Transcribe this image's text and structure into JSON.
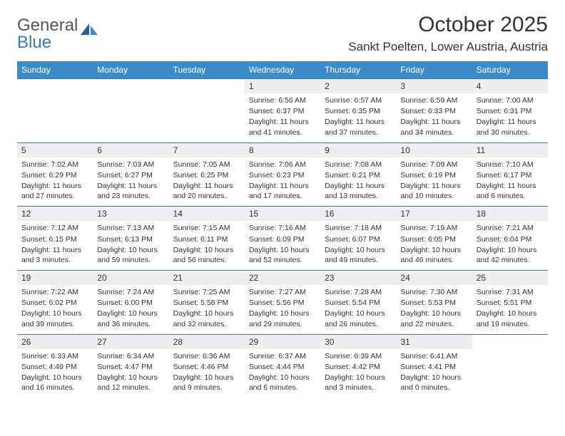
{
  "logo": {
    "word1": "General",
    "word2": "Blue"
  },
  "title": "October 2025",
  "location": "Sankt Poelten, Lower Austria, Austria",
  "colors": {
    "header_bg": "#3b8bc8",
    "border": "#2f7abf",
    "daynum_bg": "#eeeeee",
    "bg": "#ffffff",
    "text": "#333333"
  },
  "weekdays": [
    "Sunday",
    "Monday",
    "Tuesday",
    "Wednesday",
    "Thursday",
    "Friday",
    "Saturday"
  ],
  "weeks": [
    [
      null,
      null,
      null,
      {
        "n": "1",
        "sr": "6:56 AM",
        "ss": "6:37 PM",
        "dl": "11 hours and 41 minutes."
      },
      {
        "n": "2",
        "sr": "6:57 AM",
        "ss": "6:35 PM",
        "dl": "11 hours and 37 minutes."
      },
      {
        "n": "3",
        "sr": "6:59 AM",
        "ss": "6:33 PM",
        "dl": "11 hours and 34 minutes."
      },
      {
        "n": "4",
        "sr": "7:00 AM",
        "ss": "6:31 PM",
        "dl": "11 hours and 30 minutes."
      }
    ],
    [
      {
        "n": "5",
        "sr": "7:02 AM",
        "ss": "6:29 PM",
        "dl": "11 hours and 27 minutes."
      },
      {
        "n": "6",
        "sr": "7:03 AM",
        "ss": "6:27 PM",
        "dl": "11 hours and 23 minutes."
      },
      {
        "n": "7",
        "sr": "7:05 AM",
        "ss": "6:25 PM",
        "dl": "11 hours and 20 minutes."
      },
      {
        "n": "8",
        "sr": "7:06 AM",
        "ss": "6:23 PM",
        "dl": "11 hours and 17 minutes."
      },
      {
        "n": "9",
        "sr": "7:08 AM",
        "ss": "6:21 PM",
        "dl": "11 hours and 13 minutes."
      },
      {
        "n": "10",
        "sr": "7:09 AM",
        "ss": "6:19 PM",
        "dl": "11 hours and 10 minutes."
      },
      {
        "n": "11",
        "sr": "7:10 AM",
        "ss": "6:17 PM",
        "dl": "11 hours and 6 minutes."
      }
    ],
    [
      {
        "n": "12",
        "sr": "7:12 AM",
        "ss": "6:15 PM",
        "dl": "11 hours and 3 minutes."
      },
      {
        "n": "13",
        "sr": "7:13 AM",
        "ss": "6:13 PM",
        "dl": "10 hours and 59 minutes."
      },
      {
        "n": "14",
        "sr": "7:15 AM",
        "ss": "6:11 PM",
        "dl": "10 hours and 56 minutes."
      },
      {
        "n": "15",
        "sr": "7:16 AM",
        "ss": "6:09 PM",
        "dl": "10 hours and 52 minutes."
      },
      {
        "n": "16",
        "sr": "7:18 AM",
        "ss": "6:07 PM",
        "dl": "10 hours and 49 minutes."
      },
      {
        "n": "17",
        "sr": "7:19 AM",
        "ss": "6:05 PM",
        "dl": "10 hours and 46 minutes."
      },
      {
        "n": "18",
        "sr": "7:21 AM",
        "ss": "6:04 PM",
        "dl": "10 hours and 42 minutes."
      }
    ],
    [
      {
        "n": "19",
        "sr": "7:22 AM",
        "ss": "6:02 PM",
        "dl": "10 hours and 39 minutes."
      },
      {
        "n": "20",
        "sr": "7:24 AM",
        "ss": "6:00 PM",
        "dl": "10 hours and 36 minutes."
      },
      {
        "n": "21",
        "sr": "7:25 AM",
        "ss": "5:58 PM",
        "dl": "10 hours and 32 minutes."
      },
      {
        "n": "22",
        "sr": "7:27 AM",
        "ss": "5:56 PM",
        "dl": "10 hours and 29 minutes."
      },
      {
        "n": "23",
        "sr": "7:28 AM",
        "ss": "5:54 PM",
        "dl": "10 hours and 26 minutes."
      },
      {
        "n": "24",
        "sr": "7:30 AM",
        "ss": "5:53 PM",
        "dl": "10 hours and 22 minutes."
      },
      {
        "n": "25",
        "sr": "7:31 AM",
        "ss": "5:51 PM",
        "dl": "10 hours and 19 minutes."
      }
    ],
    [
      {
        "n": "26",
        "sr": "6:33 AM",
        "ss": "4:49 PM",
        "dl": "10 hours and 16 minutes."
      },
      {
        "n": "27",
        "sr": "6:34 AM",
        "ss": "4:47 PM",
        "dl": "10 hours and 12 minutes."
      },
      {
        "n": "28",
        "sr": "6:36 AM",
        "ss": "4:46 PM",
        "dl": "10 hours and 9 minutes."
      },
      {
        "n": "29",
        "sr": "6:37 AM",
        "ss": "4:44 PM",
        "dl": "10 hours and 6 minutes."
      },
      {
        "n": "30",
        "sr": "6:39 AM",
        "ss": "4:42 PM",
        "dl": "10 hours and 3 minutes."
      },
      {
        "n": "31",
        "sr": "6:41 AM",
        "ss": "4:41 PM",
        "dl": "10 hours and 0 minutes."
      },
      null
    ]
  ],
  "labels": {
    "sunrise": "Sunrise:",
    "sunset": "Sunset:",
    "daylight": "Daylight:"
  }
}
